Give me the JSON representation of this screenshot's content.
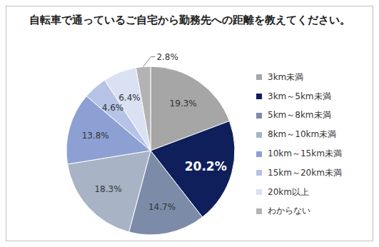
{
  "chart_data": {
    "type": "pie",
    "title": "自転車で通っているご自宅から勤務先への距離を教えてください。",
    "categories": [
      "3km未満",
      "3km～5km未満",
      "5km～8km未満",
      "8km～10km未満",
      "10km～15km未満",
      "15km～20km未満",
      "20km以上",
      "わからない"
    ],
    "values": [
      19.3,
      20.2,
      14.7,
      18.3,
      13.8,
      4.6,
      6.4,
      2.8
    ],
    "value_labels": [
      "19.3%",
      "20.2%",
      "14.7%",
      "18.3%",
      "13.8%",
      "4.6%",
      "6.4%",
      "2.8%"
    ],
    "colors": [
      "#a6a6a6",
      "#0f1f5c",
      "#7c8ba8",
      "#a9b3c6",
      "#8da0d4",
      "#b6c3e6",
      "#d9e1f2",
      "#b3b3b3"
    ],
    "data_labels": true,
    "legend": "right"
  }
}
